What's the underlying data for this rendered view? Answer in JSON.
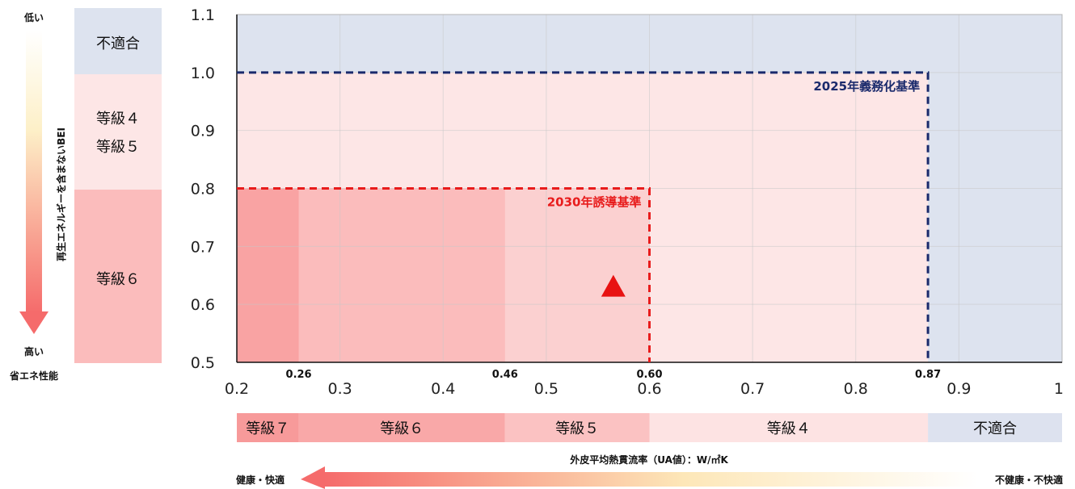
{
  "chart_data": {
    "type": "area",
    "title": "",
    "xlabel": "外皮平均熱貫流率（UA値）：W/㎡K",
    "ylabel": "再生エネルギーを含まないBEI",
    "xlim": [
      0.2,
      1.0
    ],
    "ylim": [
      0.5,
      1.1
    ],
    "x_ticks": [
      "0.2",
      "0.3",
      "0.4",
      "0.5",
      "0.6",
      "0.7",
      "0.8",
      "0.9",
      "1"
    ],
    "y_ticks": [
      "0.5",
      "0.6",
      "0.7",
      "0.8",
      "0.9",
      "1.0",
      "1.1"
    ],
    "marker_labels": [
      "0.26",
      "0.46",
      "0.60",
      "0.87"
    ],
    "grid": true,
    "regions": [
      {
        "name": "不適合",
        "x": [
          0.2,
          1.0
        ],
        "y": [
          0.5,
          1.1
        ],
        "color": "#dde3ef"
      },
      {
        "name": "等級4",
        "x": [
          0.2,
          0.87
        ],
        "y": [
          0.5,
          1.0
        ],
        "color": "#fde6e6"
      },
      {
        "name": "等級5",
        "x": [
          0.2,
          0.6
        ],
        "y": [
          0.5,
          0.8
        ],
        "color": "#fbd0d0"
      },
      {
        "name": "等級6",
        "x": [
          0.2,
          0.46
        ],
        "y": [
          0.5,
          0.8
        ],
        "color": "#fbbcbc"
      },
      {
        "name": "等級7",
        "x": [
          0.2,
          0.26
        ],
        "y": [
          0.5,
          0.8
        ],
        "color": "#f9a3a3"
      }
    ],
    "standards": [
      {
        "name": "2025年義務化基準",
        "ua": 0.87,
        "bei": 1.0,
        "color": "#1a2a6c"
      },
      {
        "name": "2030年誘導基準",
        "ua": 0.6,
        "bei": 0.8,
        "color": "#e81c1c"
      }
    ],
    "points": [
      {
        "x": 0.565,
        "y": 0.63,
        "shape": "triangle",
        "color": "#e81212"
      }
    ]
  },
  "left_scale": {
    "top_label": "低い",
    "bottom_label": "高い",
    "caption": "省エネ性能",
    "bands": [
      {
        "label_lines": [
          "不適合"
        ],
        "color": "#dde3ef"
      },
      {
        "label_lines": [
          "等級４",
          "等級５"
        ],
        "color": "#fde6e6"
      },
      {
        "label_lines": [
          "等級６"
        ],
        "color": "#fbbcbc"
      }
    ]
  },
  "bottom_scale": {
    "bands": [
      {
        "label": "等級７",
        "color": "#f79a9a"
      },
      {
        "label": "等級６",
        "color": "#f9a8a8"
      },
      {
        "label": "等級５",
        "color": "#fbc2c2"
      },
      {
        "label": "等級４",
        "color": "#fde3e3"
      },
      {
        "label": "不適合",
        "color": "#dde2ef"
      }
    ],
    "left_label": "健康・快適",
    "right_label": "不健康・不快適"
  }
}
